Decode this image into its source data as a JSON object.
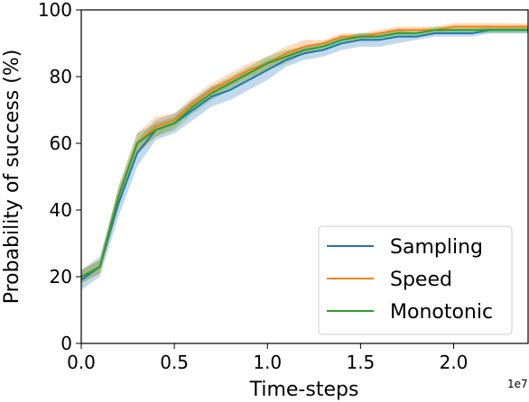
{
  "chart_data": {
    "type": "line",
    "title": "",
    "xlabel": "Time-steps",
    "ylabel": "Probability of success (%)",
    "x_offset_text": "1e7",
    "xlim": [
      0.0,
      2.4
    ],
    "ylim": [
      0,
      100
    ],
    "x_ticks": [
      0.0,
      0.5,
      1.0,
      1.5,
      2.0
    ],
    "x_tick_labels": [
      "0.0",
      "0.5",
      "1.0",
      "1.5",
      "2.0"
    ],
    "y_ticks": [
      0,
      20,
      40,
      60,
      80,
      100
    ],
    "y_tick_labels": [
      "0",
      "20",
      "40",
      "60",
      "80",
      "100"
    ],
    "grid": false,
    "legend_position": "bottom-right",
    "x": [
      0.0,
      0.1,
      0.2,
      0.3,
      0.4,
      0.5,
      0.6,
      0.7,
      0.8,
      0.9,
      1.0,
      1.1,
      1.2,
      1.3,
      1.4,
      1.5,
      1.6,
      1.7,
      1.8,
      1.9,
      2.0,
      2.1,
      2.2,
      2.3,
      2.4
    ],
    "series": [
      {
        "name": "Sampling",
        "color": "#1f77b4",
        "values": [
          19,
          23,
          42,
          57,
          64,
          66,
          70,
          74,
          76,
          79,
          82,
          85,
          87,
          88,
          90,
          91,
          91,
          92,
          92,
          93,
          93,
          93,
          94,
          94,
          94
        ],
        "band": [
          3,
          3,
          4,
          4,
          3,
          3,
          3,
          3,
          3,
          3,
          3,
          2,
          2,
          2,
          2,
          2,
          2,
          2,
          1,
          1,
          1,
          1,
          1,
          1,
          1
        ]
      },
      {
        "name": "Speed",
        "color": "#ff7f0e",
        "values": [
          20,
          23,
          44,
          60,
          65,
          67,
          72,
          76,
          79,
          82,
          84,
          87,
          89,
          90,
          92,
          92,
          93,
          94,
          94,
          94,
          95,
          95,
          95,
          95,
          95
        ],
        "band": [
          2,
          2,
          3,
          3,
          3,
          2,
          2,
          2,
          2,
          2,
          2,
          2,
          2,
          1,
          1,
          1,
          1,
          1,
          1,
          1,
          1,
          1,
          1,
          1,
          1
        ]
      },
      {
        "name": "Monotonic",
        "color": "#2ca02c",
        "values": [
          20,
          23,
          44,
          60,
          64,
          66,
          71,
          75,
          78,
          81,
          84,
          86,
          88,
          89,
          91,
          92,
          92,
          93,
          93,
          94,
          94,
          94,
          94,
          94,
          94
        ],
        "band": [
          2,
          2,
          3,
          3,
          2,
          2,
          2,
          2,
          2,
          2,
          2,
          2,
          1,
          1,
          1,
          1,
          1,
          1,
          1,
          1,
          1,
          1,
          1,
          1,
          1
        ]
      }
    ]
  }
}
